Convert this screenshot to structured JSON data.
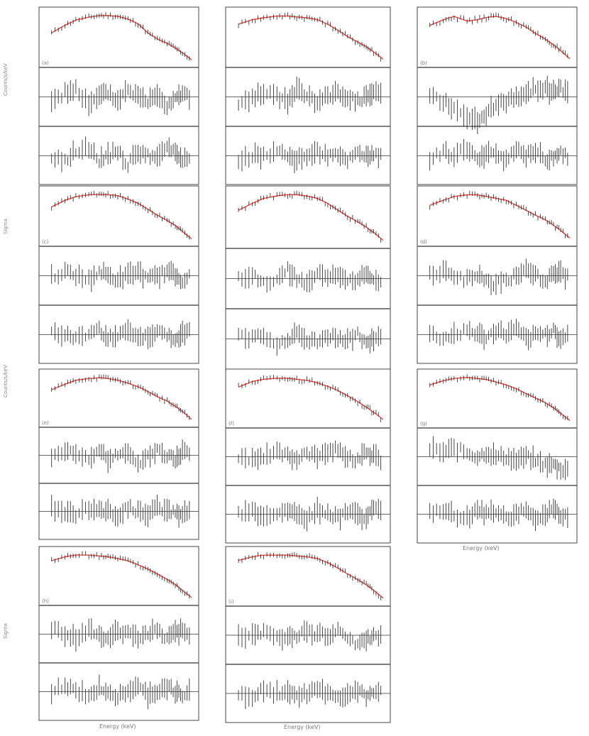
{
  "figure": {
    "energy_label": "Energy (keV)",
    "counts_label": "Counts/s/keV",
    "ratio_label": "Sigma"
  },
  "chart_data": [
    {
      "type": "line",
      "panel_label": "(a)",
      "subplots": 3,
      "model_color": "#e8463c",
      "data_color": "#222222",
      "x": [
        0.7,
        0.9,
        1.1,
        1.4,
        1.7,
        2.0,
        2.4,
        2.9,
        3.5,
        4.2,
        5.0,
        6.0,
        7.0,
        8.0,
        9.5
      ],
      "top": [
        0.06,
        0.1,
        0.14,
        0.17,
        0.19,
        0.19,
        0.18,
        0.15,
        0.11,
        0.06,
        0.04,
        0.03,
        0.022,
        0.016,
        0.01
      ],
      "resid1": [
        -1,
        1,
        2,
        -2,
        0,
        1,
        -1,
        2,
        0,
        -1,
        1,
        -2,
        0,
        1,
        -1
      ],
      "resid2": [
        0,
        -1,
        1,
        2,
        -1,
        0,
        1,
        -2,
        1,
        0,
        -1,
        2,
        1,
        -1,
        0
      ]
    },
    {
      "type": "line",
      "panel_label": "",
      "subplots": 3,
      "model_color": "#e8463c",
      "data_color": "#222222",
      "x": [
        0.7,
        0.9,
        1.1,
        1.4,
        1.7,
        2.0,
        2.4,
        2.9,
        3.5,
        4.2,
        5.0,
        6.0,
        7.0,
        8.0,
        9.5
      ],
      "top": [
        0.07,
        0.09,
        0.1,
        0.11,
        0.11,
        0.105,
        0.1,
        0.09,
        0.07,
        0.05,
        0.035,
        0.026,
        0.02,
        0.015,
        0.01
      ],
      "resid1": [
        -2,
        0,
        1,
        0,
        -1,
        2,
        0,
        -1,
        0,
        1,
        0,
        -1,
        0,
        1,
        0
      ],
      "resid2": [
        -1,
        0,
        0,
        1,
        0,
        -1,
        0,
        1,
        0,
        0,
        -1,
        1,
        0,
        0,
        0
      ]
    },
    {
      "type": "line",
      "panel_label": "(b)",
      "subplots": 3,
      "model_color": "#e8463c",
      "data_color": "#222222",
      "x": [
        0.7,
        0.9,
        1.1,
        1.4,
        1.7,
        2.0,
        2.4,
        2.9,
        3.5,
        4.2,
        5.0,
        6.0,
        7.0,
        8.0,
        9.5
      ],
      "top": [
        0.12,
        0.16,
        0.19,
        0.15,
        0.16,
        0.18,
        0.19,
        0.17,
        0.14,
        0.11,
        0.08,
        0.06,
        0.045,
        0.033,
        0.022
      ],
      "resid1": [
        0,
        -1,
        -3,
        -5,
        -6,
        -4,
        -2,
        -1,
        0,
        1,
        2,
        2,
        1,
        2,
        1
      ],
      "resid2": [
        -1,
        1,
        0,
        2,
        -1,
        0,
        1,
        -1,
        2,
        0,
        1,
        -1,
        0,
        1,
        -1
      ]
    },
    {
      "type": "line",
      "panel_label": "(c)",
      "subplots": 3,
      "model_color": "#e8463c",
      "data_color": "#222222",
      "x": [
        0.7,
        0.9,
        1.1,
        1.4,
        1.7,
        2.0,
        2.4,
        2.9,
        3.5,
        4.2,
        5.0,
        6.0,
        7.0,
        8.0,
        9.5
      ],
      "top": [
        0.07,
        0.11,
        0.14,
        0.16,
        0.165,
        0.16,
        0.15,
        0.12,
        0.09,
        0.06,
        0.04,
        0.028,
        0.02,
        0.013,
        0.008
      ],
      "resid1": [
        0,
        1,
        0,
        -1,
        1,
        0,
        -1,
        0,
        1,
        -1,
        0,
        1,
        0,
        -1,
        0
      ],
      "resid2": [
        1,
        0,
        -1,
        0,
        1,
        -1,
        0,
        1,
        0,
        -1,
        1,
        0,
        -1,
        0,
        1
      ]
    },
    {
      "type": "line",
      "panel_label": "",
      "subplots": 3,
      "model_color": "#e8463c",
      "data_color": "#222222",
      "x": [
        0.7,
        0.9,
        1.1,
        1.4,
        1.7,
        2.0,
        2.4,
        2.9,
        3.5,
        4.2,
        5.0,
        6.0,
        7.0,
        8.0,
        9.5
      ],
      "top": [
        0.06,
        0.09,
        0.12,
        0.14,
        0.15,
        0.15,
        0.14,
        0.12,
        0.09,
        0.06,
        0.042,
        0.03,
        0.022,
        0.016,
        0.01
      ],
      "resid1": [
        0,
        1,
        -1,
        0,
        2,
        0,
        -1,
        1,
        0,
        1,
        -1,
        0,
        1,
        0,
        -1
      ],
      "resid2": [
        1,
        0,
        1,
        -1,
        0,
        1,
        0,
        -1,
        1,
        0,
        0,
        1,
        -1,
        0,
        1
      ]
    },
    {
      "type": "line",
      "panel_label": "(d)",
      "subplots": 3,
      "model_color": "#e8463c",
      "data_color": "#222222",
      "x": [
        0.7,
        0.9,
        1.1,
        1.4,
        1.7,
        2.0,
        2.4,
        2.9,
        3.5,
        4.2,
        5.0,
        6.0,
        7.0,
        8.0,
        9.5
      ],
      "top": [
        0.06,
        0.08,
        0.1,
        0.11,
        0.11,
        0.1,
        0.09,
        0.08,
        0.06,
        0.045,
        0.034,
        0.026,
        0.019,
        0.014,
        0.009
      ],
      "resid1": [
        0,
        1,
        0,
        -1,
        0,
        -1,
        -2,
        -1,
        0,
        1,
        0,
        -1,
        0,
        1,
        -1
      ],
      "resid2": [
        0,
        -1,
        0,
        1,
        0,
        -1,
        1,
        0,
        1,
        -1,
        0,
        0,
        1,
        -1,
        0
      ]
    },
    {
      "type": "line",
      "panel_label": "(e)",
      "subplots": 3,
      "model_color": "#e8463c",
      "data_color": "#222222",
      "x": [
        0.7,
        0.9,
        1.1,
        1.4,
        1.7,
        2.0,
        2.4,
        2.9,
        3.5,
        4.2,
        5.0,
        6.0,
        7.0,
        8.0,
        9.5
      ],
      "top": [
        0.05,
        0.07,
        0.09,
        0.1,
        0.105,
        0.1,
        0.09,
        0.075,
        0.06,
        0.045,
        0.033,
        0.025,
        0.018,
        0.013,
        0.008
      ],
      "resid1": [
        0,
        1,
        0,
        -1,
        1,
        -1,
        0,
        1,
        -2,
        0,
        1,
        0,
        -1,
        1,
        0
      ],
      "resid2": [
        1,
        0,
        -1,
        1,
        0,
        0,
        -1,
        1,
        0,
        -1,
        1,
        0,
        0,
        -1,
        1
      ]
    },
    {
      "type": "line",
      "panel_label": "(f)",
      "subplots": 3,
      "model_color": "#e8463c",
      "data_color": "#222222",
      "x": [
        0.7,
        0.9,
        1.1,
        1.4,
        1.7,
        2.0,
        2.4,
        2.9,
        3.5,
        4.2,
        5.0,
        6.0,
        7.0,
        8.0,
        9.5
      ],
      "top": [
        0.06,
        0.08,
        0.09,
        0.095,
        0.095,
        0.09,
        0.085,
        0.075,
        0.062,
        0.05,
        0.038,
        0.028,
        0.021,
        0.016,
        0.011
      ],
      "resid1": [
        0,
        -1,
        0,
        1,
        0,
        -1,
        1,
        0,
        1,
        2,
        0,
        -1,
        1,
        0,
        -1
      ],
      "resid2": [
        0,
        1,
        -1,
        0,
        1,
        0,
        -1,
        1,
        0,
        -1,
        1,
        0,
        -1,
        1,
        0
      ]
    },
    {
      "type": "line",
      "panel_label": "(g)",
      "subplots": 3,
      "model_color": "#e8463c",
      "data_color": "#222222",
      "x": [
        0.7,
        0.9,
        1.1,
        1.4,
        1.7,
        2.0,
        2.4,
        2.9,
        3.5,
        4.2,
        5.0,
        6.0,
        7.0,
        8.0,
        9.5
      ],
      "top": [
        0.09,
        0.12,
        0.14,
        0.15,
        0.14,
        0.13,
        0.11,
        0.09,
        0.07,
        0.05,
        0.037,
        0.027,
        0.019,
        0.013,
        0.008
      ],
      "resid1": [
        2,
        1,
        2,
        1,
        0,
        1,
        0,
        0,
        -1,
        0,
        -1,
        -2,
        -2,
        -3,
        -3
      ],
      "resid2": [
        0,
        1,
        0,
        -1,
        1,
        0,
        1,
        -1,
        0,
        1,
        -1,
        0,
        1,
        0,
        -1
      ]
    },
    {
      "type": "line",
      "panel_label": "(h)",
      "subplots": 3,
      "model_color": "#e8463c",
      "data_color": "#222222",
      "x": [
        0.7,
        0.9,
        1.1,
        1.4,
        1.7,
        2.0,
        2.4,
        2.9,
        3.5,
        4.2,
        5.0,
        6.0,
        7.0,
        8.0,
        9.5
      ],
      "top": [
        0.07,
        0.09,
        0.1,
        0.1,
        0.095,
        0.09,
        0.08,
        0.07,
        0.055,
        0.042,
        0.031,
        0.022,
        0.016,
        0.011,
        0.007
      ],
      "resid1": [
        1,
        0,
        -1,
        1,
        0,
        -1,
        1,
        0,
        -1,
        0,
        1,
        -1,
        0,
        1,
        0
      ],
      "resid2": [
        0,
        1,
        0,
        -1,
        1,
        0,
        -1,
        0,
        1,
        -1,
        0,
        1,
        0,
        -1,
        0
      ]
    },
    {
      "type": "line",
      "panel_label": "(i)",
      "subplots": 3,
      "model_color": "#e8463c",
      "data_color": "#222222",
      "x": [
        0.7,
        0.9,
        1.1,
        1.4,
        1.7,
        2.0,
        2.4,
        2.9,
        3.5,
        4.2,
        5.0,
        6.0,
        7.0,
        8.0,
        9.5
      ],
      "top": [
        0.08,
        0.1,
        0.11,
        0.11,
        0.11,
        0.105,
        0.1,
        0.09,
        0.07,
        0.05,
        0.035,
        0.025,
        0.018,
        0.013,
        0.008
      ],
      "resid1": [
        0,
        0,
        1,
        0,
        -1,
        0,
        1,
        0,
        0,
        1,
        -1,
        -2,
        -1,
        0,
        0
      ],
      "resid2": [
        0,
        -1,
        1,
        0,
        1,
        -1,
        0,
        1,
        0,
        -1,
        0,
        1,
        -1,
        0,
        1
      ]
    }
  ]
}
